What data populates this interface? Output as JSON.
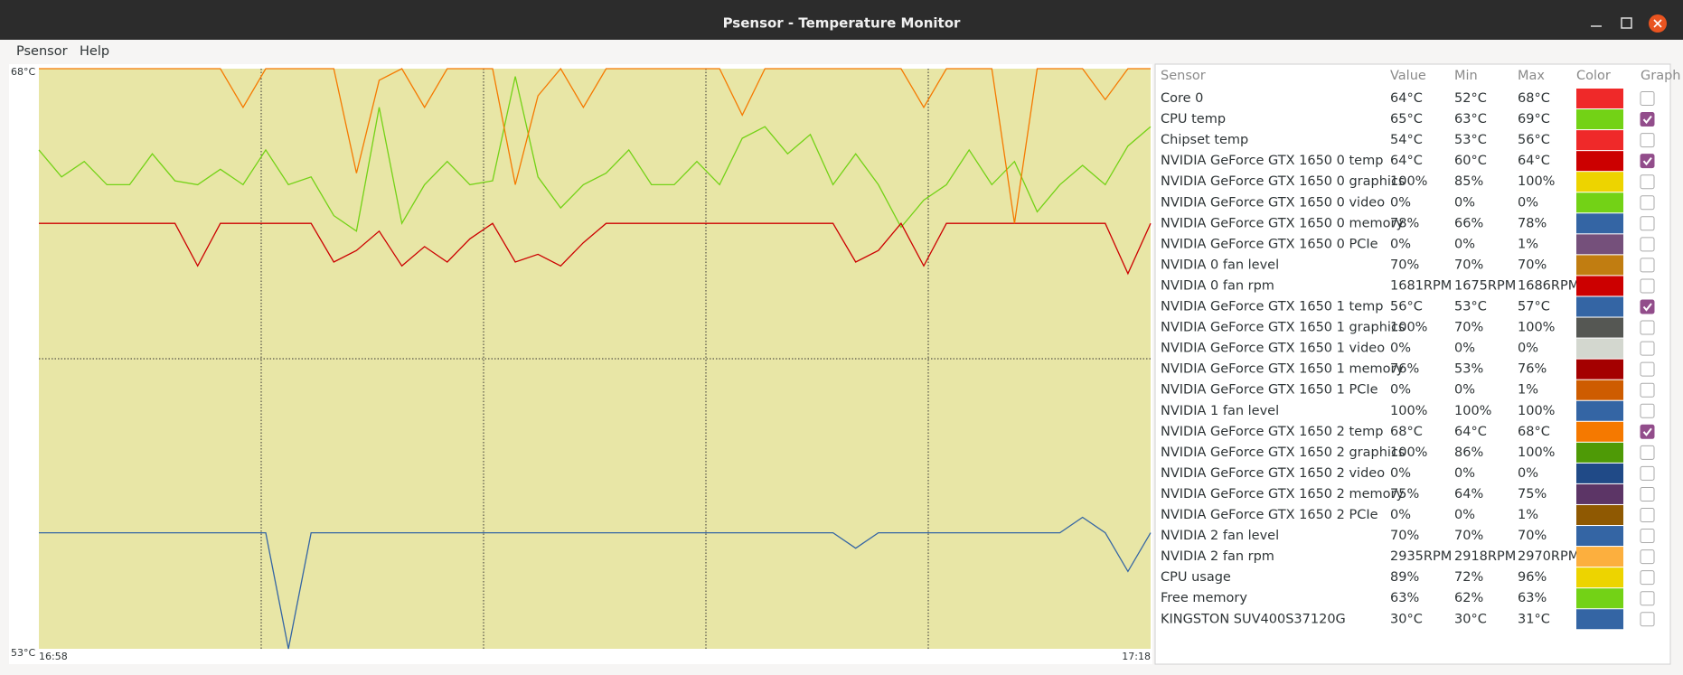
{
  "window": {
    "title": "Psensor - Temperature Monitor"
  },
  "menu": [
    "Psensor",
    "Help"
  ],
  "graph": {
    "ylim": [
      53,
      68
    ],
    "yticks": [
      {
        "value": 68,
        "label": "68°C"
      },
      {
        "value": 53,
        "label": "53°C"
      }
    ],
    "xlabels": [
      "16:58",
      "17:18"
    ]
  },
  "table": {
    "headers": [
      "Sensor",
      "Value",
      "Min",
      "Max",
      "Color",
      "Graph"
    ],
    "rows": [
      {
        "name": "Core 0",
        "value": "64°C",
        "min": "52°C",
        "max": "68°C",
        "color": "#ef2929",
        "graph": false
      },
      {
        "name": "CPU temp",
        "value": "65°C",
        "min": "63°C",
        "max": "69°C",
        "color": "#73d216",
        "graph": true,
        "history": [
          65.9,
          65.2,
          65.6,
          65.0,
          65.0,
          65.8,
          65.1,
          65.0,
          65.4,
          65.0,
          65.9,
          65.0,
          65.2,
          64.2,
          63.8,
          67.0,
          64.0,
          65.0,
          65.6,
          65.0,
          65.1,
          67.8,
          65.2,
          64.4,
          65.0,
          65.3,
          65.9,
          65.0,
          65.0,
          65.6,
          65.0,
          66.2,
          66.5,
          65.8,
          66.3,
          65.0,
          65.8,
          65.0,
          63.9,
          64.6,
          65.0,
          65.9,
          65.0,
          65.6,
          64.3,
          65.0,
          65.5,
          65.0,
          66.0,
          66.5
        ]
      },
      {
        "name": "Chipset temp",
        "value": "54°C",
        "min": "53°C",
        "max": "56°C",
        "color": "#ef2929",
        "graph": false
      },
      {
        "name": "NVIDIA GeForce GTX 1650 0 temp",
        "value": "64°C",
        "min": "60°C",
        "max": "64°C",
        "color": "#cc0000",
        "graph": true,
        "history": [
          64,
          64,
          64,
          64,
          64,
          64,
          64,
          62.9,
          64,
          64,
          64,
          64,
          64,
          63.0,
          63.3,
          63.8,
          62.9,
          63.4,
          63.0,
          63.6,
          64,
          63.0,
          63.2,
          62.9,
          63.5,
          64,
          64,
          64,
          64,
          64,
          64,
          64,
          64,
          64,
          64,
          64,
          63.0,
          63.3,
          64,
          62.9,
          64,
          64,
          64,
          64,
          64,
          64,
          64,
          64,
          62.7,
          64
        ]
      },
      {
        "name": "NVIDIA GeForce GTX 1650 0 graphics",
        "value": "100%",
        "min": "85%",
        "max": "100%",
        "color": "#edd400",
        "graph": false
      },
      {
        "name": "NVIDIA GeForce GTX 1650 0 video",
        "value": "0%",
        "min": "0%",
        "max": "0%",
        "color": "#73d216",
        "graph": false
      },
      {
        "name": "NVIDIA GeForce GTX 1650 0 memory",
        "value": "78%",
        "min": "66%",
        "max": "78%",
        "color": "#3465a4",
        "graph": false
      },
      {
        "name": "NVIDIA GeForce GTX 1650 0 PCIe",
        "value": "0%",
        "min": "0%",
        "max": "1%",
        "color": "#75507b",
        "graph": false
      },
      {
        "name": "NVIDIA 0 fan level",
        "value": "70%",
        "min": "70%",
        "max": "70%",
        "color": "#c17d11",
        "graph": false
      },
      {
        "name": "NVIDIA 0 fan rpm",
        "value": "1681RPM",
        "min": "1675RPM",
        "max": "1686RPM",
        "color": "#cc0000",
        "graph": false
      },
      {
        "name": "NVIDIA GeForce GTX 1650 1 temp",
        "value": "56°C",
        "min": "53°C",
        "max": "57°C",
        "color": "#3465a4",
        "graph": true,
        "history": [
          56,
          56,
          56,
          56,
          56,
          56,
          56,
          56,
          56,
          56,
          56,
          53.0,
          56,
          56,
          56,
          56,
          56,
          56,
          56,
          56,
          56,
          56,
          56,
          56,
          56,
          56,
          56,
          56,
          56,
          56,
          56,
          56,
          56,
          56,
          56,
          56,
          55.6,
          56,
          56,
          56,
          56,
          56,
          56,
          56,
          56,
          56,
          56.4,
          56,
          55.0,
          56
        ]
      },
      {
        "name": "NVIDIA GeForce GTX 1650 1 graphics",
        "value": "100%",
        "min": "70%",
        "max": "100%",
        "color": "#555753",
        "graph": false
      },
      {
        "name": "NVIDIA GeForce GTX 1650 1 video",
        "value": "0%",
        "min": "0%",
        "max": "0%",
        "color": "#d3d7cf",
        "graph": false
      },
      {
        "name": "NVIDIA GeForce GTX 1650 1 memory",
        "value": "76%",
        "min": "53%",
        "max": "76%",
        "color": "#a40000",
        "graph": false
      },
      {
        "name": "NVIDIA GeForce GTX 1650 1 PCIe",
        "value": "0%",
        "min": "0%",
        "max": "1%",
        "color": "#ce5c00",
        "graph": false
      },
      {
        "name": "NVIDIA 1 fan level",
        "value": "100%",
        "min": "100%",
        "max": "100%",
        "color": "#3465a4",
        "graph": false
      },
      {
        "name": "NVIDIA GeForce GTX 1650 2 temp",
        "value": "68°C",
        "min": "64°C",
        "max": "68°C",
        "color": "#f57900",
        "graph": true,
        "history": [
          68,
          68,
          68,
          68,
          68,
          68,
          68,
          68,
          68,
          67.0,
          68,
          68,
          68,
          68,
          65.3,
          67.7,
          68,
          67.0,
          68,
          68,
          68,
          65.0,
          67.3,
          68,
          67.0,
          68,
          68,
          68,
          68,
          68,
          68,
          66.8,
          68,
          68,
          68,
          68,
          68,
          68,
          68,
          67.0,
          68,
          68,
          68,
          64.0,
          68,
          68,
          68,
          67.2,
          68,
          68
        ]
      },
      {
        "name": "NVIDIA GeForce GTX 1650 2 graphics",
        "value": "100%",
        "min": "86%",
        "max": "100%",
        "color": "#4e9a06",
        "graph": false
      },
      {
        "name": "NVIDIA GeForce GTX 1650 2 video",
        "value": "0%",
        "min": "0%",
        "max": "0%",
        "color": "#204a87",
        "graph": false
      },
      {
        "name": "NVIDIA GeForce GTX 1650 2 memory",
        "value": "75%",
        "min": "64%",
        "max": "75%",
        "color": "#5c3566",
        "graph": false
      },
      {
        "name": "NVIDIA GeForce GTX 1650 2 PCIe",
        "value": "0%",
        "min": "0%",
        "max": "1%",
        "color": "#8f5902",
        "graph": false
      },
      {
        "name": "NVIDIA 2 fan level",
        "value": "70%",
        "min": "70%",
        "max": "70%",
        "color": "#3465a4",
        "graph": false
      },
      {
        "name": "NVIDIA 2 fan rpm",
        "value": "2935RPM",
        "min": "2918RPM",
        "max": "2970RPM",
        "color": "#fcaf3e",
        "graph": false
      },
      {
        "name": "CPU usage",
        "value": "89%",
        "min": "72%",
        "max": "96%",
        "color": "#edd400",
        "graph": false
      },
      {
        "name": "Free memory",
        "value": "63%",
        "min": "62%",
        "max": "63%",
        "color": "#73d216",
        "graph": false
      },
      {
        "name": "KINGSTON SUV400S37120G",
        "value": "30°C",
        "min": "30°C",
        "max": "31°C",
        "color": "#3465a4",
        "graph": false
      }
    ]
  }
}
